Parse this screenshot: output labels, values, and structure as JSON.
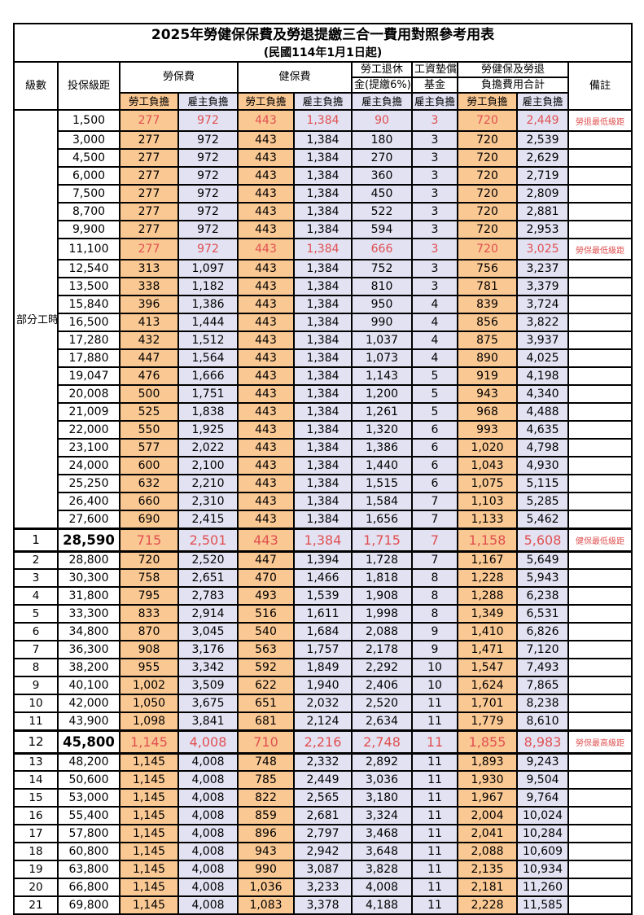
{
  "title": "2025年勞健保保費及勞退提繳三合一費用對照參考用表",
  "subtitle": "(民國114年1月1日起)",
  "header": {
    "level": "級數",
    "bracket": "投保級距",
    "labor": "勞保費",
    "health": "健保費",
    "pension_line1": "勞工退休",
    "pension_line2": "金(提繳6%)",
    "wage_fund_line1": "工資墊償",
    "wage_fund_line2": "基金",
    "total_line1": "勞健保及勞退",
    "total_line2": "負擔費用合計",
    "employee": "勞工負擔",
    "employer": "雇主負擔",
    "remark": "備註"
  },
  "part_time_label": "部分工時",
  "part_time_rowspan": 23,
  "colors": {
    "employee_bg": "#FAC893",
    "employer_bg": "#E2E2F3",
    "highlight_text": "#E05050",
    "grid": "#000000"
  },
  "rows": [
    {
      "level": "",
      "bracket": "1,500",
      "values": [
        "277",
        "972",
        "443",
        "1,384",
        "90",
        "3",
        "720",
        "2,449"
      ],
      "note": "勞退最低級距",
      "highlight": true,
      "big": false
    },
    {
      "level": "",
      "bracket": "3,000",
      "values": [
        "277",
        "972",
        "443",
        "1,384",
        "180",
        "3",
        "720",
        "2,539"
      ],
      "note": "",
      "highlight": false,
      "big": false
    },
    {
      "level": "",
      "bracket": "4,500",
      "values": [
        "277",
        "972",
        "443",
        "1,384",
        "270",
        "3",
        "720",
        "2,629"
      ],
      "note": "",
      "highlight": false,
      "big": false
    },
    {
      "level": "",
      "bracket": "6,000",
      "values": [
        "277",
        "972",
        "443",
        "1,384",
        "360",
        "3",
        "720",
        "2,719"
      ],
      "note": "",
      "highlight": false,
      "big": false
    },
    {
      "level": "",
      "bracket": "7,500",
      "values": [
        "277",
        "972",
        "443",
        "1,384",
        "450",
        "3",
        "720",
        "2,809"
      ],
      "note": "",
      "highlight": false,
      "big": false
    },
    {
      "level": "",
      "bracket": "8,700",
      "values": [
        "277",
        "972",
        "443",
        "1,384",
        "522",
        "3",
        "720",
        "2,881"
      ],
      "note": "",
      "highlight": false,
      "big": false
    },
    {
      "level": "",
      "bracket": "9,900",
      "values": [
        "277",
        "972",
        "443",
        "1,384",
        "594",
        "3",
        "720",
        "2,953"
      ],
      "note": "",
      "highlight": false,
      "big": false
    },
    {
      "level": "",
      "bracket": "11,100",
      "values": [
        "277",
        "972",
        "443",
        "1,384",
        "666",
        "3",
        "720",
        "3,025"
      ],
      "note": "勞保最低級距",
      "highlight": true,
      "big": false
    },
    {
      "level": "",
      "bracket": "12,540",
      "values": [
        "313",
        "1,097",
        "443",
        "1,384",
        "752",
        "3",
        "756",
        "3,237"
      ],
      "note": "",
      "highlight": false,
      "big": false
    },
    {
      "level": "",
      "bracket": "13,500",
      "values": [
        "338",
        "1,182",
        "443",
        "1,384",
        "810",
        "3",
        "781",
        "3,379"
      ],
      "note": "",
      "highlight": false,
      "big": false
    },
    {
      "level": "",
      "bracket": "15,840",
      "values": [
        "396",
        "1,386",
        "443",
        "1,384",
        "950",
        "4",
        "839",
        "3,724"
      ],
      "note": "",
      "highlight": false,
      "big": false
    },
    {
      "level": "",
      "bracket": "16,500",
      "values": [
        "413",
        "1,444",
        "443",
        "1,384",
        "990",
        "4",
        "856",
        "3,822"
      ],
      "note": "",
      "highlight": false,
      "big": false
    },
    {
      "level": "",
      "bracket": "17,280",
      "values": [
        "432",
        "1,512",
        "443",
        "1,384",
        "1,037",
        "4",
        "875",
        "3,937"
      ],
      "note": "",
      "highlight": false,
      "big": false
    },
    {
      "level": "",
      "bracket": "17,880",
      "values": [
        "447",
        "1,564",
        "443",
        "1,384",
        "1,073",
        "4",
        "890",
        "4,025"
      ],
      "note": "",
      "highlight": false,
      "big": false
    },
    {
      "level": "",
      "bracket": "19,047",
      "values": [
        "476",
        "1,666",
        "443",
        "1,384",
        "1,143",
        "5",
        "919",
        "4,198"
      ],
      "note": "",
      "highlight": false,
      "big": false
    },
    {
      "level": "",
      "bracket": "20,008",
      "values": [
        "500",
        "1,751",
        "443",
        "1,384",
        "1,200",
        "5",
        "943",
        "4,340"
      ],
      "note": "",
      "highlight": false,
      "big": false
    },
    {
      "level": "",
      "bracket": "21,009",
      "values": [
        "525",
        "1,838",
        "443",
        "1,384",
        "1,261",
        "5",
        "968",
        "4,488"
      ],
      "note": "",
      "highlight": false,
      "big": false
    },
    {
      "level": "",
      "bracket": "22,000",
      "values": [
        "550",
        "1,925",
        "443",
        "1,384",
        "1,320",
        "6",
        "993",
        "4,635"
      ],
      "note": "",
      "highlight": false,
      "big": false
    },
    {
      "level": "",
      "bracket": "23,100",
      "values": [
        "577",
        "2,022",
        "443",
        "1,384",
        "1,386",
        "6",
        "1,020",
        "4,798"
      ],
      "note": "",
      "highlight": false,
      "big": false
    },
    {
      "level": "",
      "bracket": "24,000",
      "values": [
        "600",
        "2,100",
        "443",
        "1,384",
        "1,440",
        "6",
        "1,043",
        "4,930"
      ],
      "note": "",
      "highlight": false,
      "big": false
    },
    {
      "level": "",
      "bracket": "25,250",
      "values": [
        "632",
        "2,210",
        "443",
        "1,384",
        "1,515",
        "6",
        "1,075",
        "5,115"
      ],
      "note": "",
      "highlight": false,
      "big": false
    },
    {
      "level": "",
      "bracket": "26,400",
      "values": [
        "660",
        "2,310",
        "443",
        "1,384",
        "1,584",
        "7",
        "1,103",
        "5,285"
      ],
      "note": "",
      "highlight": false,
      "big": false
    },
    {
      "level": "",
      "bracket": "27,600",
      "values": [
        "690",
        "2,415",
        "443",
        "1,384",
        "1,656",
        "7",
        "1,133",
        "5,462"
      ],
      "note": "",
      "highlight": false,
      "big": false
    },
    {
      "level": "1",
      "bracket": "28,590",
      "values": [
        "715",
        "2,501",
        "443",
        "1,384",
        "1,715",
        "7",
        "1,158",
        "5,608"
      ],
      "note": "健保最低級距",
      "highlight": true,
      "big": true
    },
    {
      "level": "2",
      "bracket": "28,800",
      "values": [
        "720",
        "2,520",
        "447",
        "1,394",
        "1,728",
        "7",
        "1,167",
        "5,649"
      ],
      "note": "",
      "highlight": false,
      "big": false
    },
    {
      "level": "3",
      "bracket": "30,300",
      "values": [
        "758",
        "2,651",
        "470",
        "1,466",
        "1,818",
        "8",
        "1,228",
        "5,943"
      ],
      "note": "",
      "highlight": false,
      "big": false
    },
    {
      "level": "4",
      "bracket": "31,800",
      "values": [
        "795",
        "2,783",
        "493",
        "1,539",
        "1,908",
        "8",
        "1,288",
        "6,238"
      ],
      "note": "",
      "highlight": false,
      "big": false
    },
    {
      "level": "5",
      "bracket": "33,300",
      "values": [
        "833",
        "2,914",
        "516",
        "1,611",
        "1,998",
        "8",
        "1,349",
        "6,531"
      ],
      "note": "",
      "highlight": false,
      "big": false
    },
    {
      "level": "6",
      "bracket": "34,800",
      "values": [
        "870",
        "3,045",
        "540",
        "1,684",
        "2,088",
        "9",
        "1,410",
        "6,826"
      ],
      "note": "",
      "highlight": false,
      "big": false
    },
    {
      "level": "7",
      "bracket": "36,300",
      "values": [
        "908",
        "3,176",
        "563",
        "1,757",
        "2,178",
        "9",
        "1,471",
        "7,120"
      ],
      "note": "",
      "highlight": false,
      "big": false
    },
    {
      "level": "8",
      "bracket": "38,200",
      "values": [
        "955",
        "3,342",
        "592",
        "1,849",
        "2,292",
        "10",
        "1,547",
        "7,493"
      ],
      "note": "",
      "highlight": false,
      "big": false
    },
    {
      "level": "9",
      "bracket": "40,100",
      "values": [
        "1,002",
        "3,509",
        "622",
        "1,940",
        "2,406",
        "10",
        "1,624",
        "7,865"
      ],
      "note": "",
      "highlight": false,
      "big": false
    },
    {
      "level": "10",
      "bracket": "42,000",
      "values": [
        "1,050",
        "3,675",
        "651",
        "2,032",
        "2,520",
        "11",
        "1,701",
        "8,238"
      ],
      "note": "",
      "highlight": false,
      "big": false
    },
    {
      "level": "11",
      "bracket": "43,900",
      "values": [
        "1,098",
        "3,841",
        "681",
        "2,124",
        "2,634",
        "11",
        "1,779",
        "8,610"
      ],
      "note": "",
      "highlight": false,
      "big": false
    },
    {
      "level": "12",
      "bracket": "45,800",
      "values": [
        "1,145",
        "4,008",
        "710",
        "2,216",
        "2,748",
        "11",
        "1,855",
        "8,983"
      ],
      "note": "勞保最高級距",
      "highlight": true,
      "big": true
    },
    {
      "level": "13",
      "bracket": "48,200",
      "values": [
        "1,145",
        "4,008",
        "748",
        "2,332",
        "2,892",
        "11",
        "1,893",
        "9,243"
      ],
      "note": "",
      "highlight": false,
      "big": false
    },
    {
      "level": "14",
      "bracket": "50,600",
      "values": [
        "1,145",
        "4,008",
        "785",
        "2,449",
        "3,036",
        "11",
        "1,930",
        "9,504"
      ],
      "note": "",
      "highlight": false,
      "big": false
    },
    {
      "level": "15",
      "bracket": "53,000",
      "values": [
        "1,145",
        "4,008",
        "822",
        "2,565",
        "3,180",
        "11",
        "1,967",
        "9,764"
      ],
      "note": "",
      "highlight": false,
      "big": false
    },
    {
      "level": "16",
      "bracket": "55,400",
      "values": [
        "1,145",
        "4,008",
        "859",
        "2,681",
        "3,324",
        "11",
        "2,004",
        "10,024"
      ],
      "note": "",
      "highlight": false,
      "big": false
    },
    {
      "level": "17",
      "bracket": "57,800",
      "values": [
        "1,145",
        "4,008",
        "896",
        "2,797",
        "3,468",
        "11",
        "2,041",
        "10,284"
      ],
      "note": "",
      "highlight": false,
      "big": false
    },
    {
      "level": "18",
      "bracket": "60,800",
      "values": [
        "1,145",
        "4,008",
        "943",
        "2,942",
        "3,648",
        "11",
        "2,088",
        "10,609"
      ],
      "note": "",
      "highlight": false,
      "big": false
    },
    {
      "level": "19",
      "bracket": "63,800",
      "values": [
        "1,145",
        "4,008",
        "990",
        "3,087",
        "3,828",
        "11",
        "2,135",
        "10,934"
      ],
      "note": "",
      "highlight": false,
      "big": false
    },
    {
      "level": "20",
      "bracket": "66,800",
      "values": [
        "1,145",
        "4,008",
        "1,036",
        "3,233",
        "4,008",
        "11",
        "2,181",
        "11,260"
      ],
      "note": "",
      "highlight": false,
      "big": false
    },
    {
      "level": "21",
      "bracket": "69,800",
      "values": [
        "1,145",
        "4,008",
        "1,083",
        "3,378",
        "4,188",
        "11",
        "2,228",
        "11,585"
      ],
      "note": "",
      "highlight": false,
      "big": false
    }
  ],
  "value_column_tints": [
    "emp",
    "er",
    "emp",
    "er",
    "er",
    "er",
    "emp",
    "er"
  ],
  "value_column_names": [
    "labor-employee",
    "labor-employer",
    "health-employee",
    "health-employer",
    "pension-employer",
    "wage-fund-employer",
    "total-employee",
    "total-employer"
  ]
}
